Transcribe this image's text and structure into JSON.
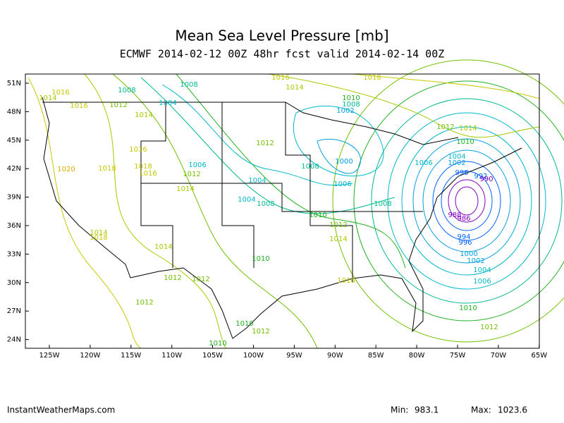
{
  "header": {
    "title": "Mean Sea Level Pressure [mb]",
    "subtitle": "ECMWF 2014-02-12 00Z 48hr fcst valid 2014-02-14 00Z"
  },
  "lat_labels": [
    "51N",
    "48N",
    "45N",
    "42N",
    "39N",
    "36N",
    "33N",
    "30N",
    "27N",
    "24N"
  ],
  "lon_labels": [
    "125W",
    "120W",
    "115W",
    "110W",
    "105W",
    "100W",
    "95W",
    "90W",
    "85W",
    "80W",
    "75W",
    "70W",
    "65W"
  ],
  "contour_labels": [
    1016,
    1014,
    1016,
    1008,
    1008,
    1004,
    1012,
    1014,
    1016,
    1014,
    1018,
    1010,
    1008,
    1002,
    1012,
    1016,
    1018,
    1020,
    1018,
    1016,
    1012,
    1006,
    1014,
    1004,
    1008,
    1000,
    1006,
    1006,
    1004,
    1008,
    1010,
    1008,
    1012,
    1014,
    1014,
    1018,
    1014,
    1010,
    1012,
    1012,
    1012,
    1016,
    1010,
    1012,
    1010,
    1012,
    1014,
    1010,
    1004,
    1002,
    996,
    992,
    990,
    988,
    986,
    994,
    996,
    1000,
    1002,
    1004,
    1006,
    1010,
    1012
  ],
  "footer": {
    "site": "InstantWeatherMaps.com",
    "min_label": "Min:",
    "min": 983.1,
    "max_label": "Max:",
    "max": 1023.6
  }
}
